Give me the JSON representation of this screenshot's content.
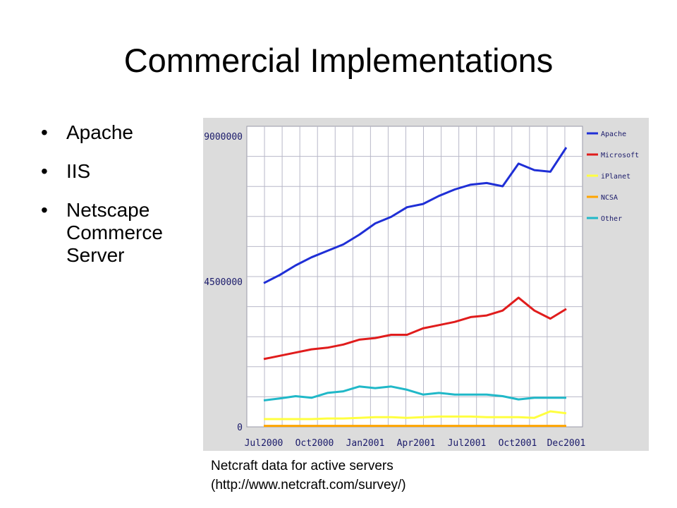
{
  "slide": {
    "title": "Commercial Implementations",
    "bullets": [
      "Apache",
      "IIS",
      "Netscape Commerce Server"
    ]
  },
  "caption": {
    "line1": "Netcraft data for active servers",
    "line2": "(http://www.netcraft.com/survey/)"
  },
  "chart_data": {
    "type": "line",
    "title": "",
    "xlabel": "",
    "ylabel": "",
    "x_tick_labels": [
      "Jul2000",
      "Oct2000",
      "Jan2001",
      "Apr2001",
      "Jul2001",
      "Oct2001",
      "Dec2001"
    ],
    "y_tick_labels": [
      "9000000",
      "4500000",
      "0"
    ],
    "ylim": [
      0,
      9000000
    ],
    "grid": true,
    "legend_position": "top-right",
    "series": [
      {
        "name": "Apache",
        "color": "#1f2fd6",
        "values": [
          4450000,
          4700000,
          5000000,
          5250000,
          5450000,
          5650000,
          5950000,
          6300000,
          6500000,
          6800000,
          6900000,
          7150000,
          7350000,
          7500000,
          7550000,
          7450000,
          8150000,
          7950000,
          7900000,
          8650000
        ]
      },
      {
        "name": "Microsoft",
        "color": "#e01c1c",
        "values": [
          2100000,
          2200000,
          2300000,
          2400000,
          2450000,
          2550000,
          2700000,
          2750000,
          2850000,
          2850000,
          3050000,
          3150000,
          3250000,
          3400000,
          3450000,
          3600000,
          4000000,
          3600000,
          3350000,
          3650000
        ]
      },
      {
        "name": "iPlanet",
        "color": "#ffff40",
        "values": [
          240000,
          240000,
          240000,
          240000,
          260000,
          260000,
          280000,
          300000,
          300000,
          280000,
          300000,
          320000,
          320000,
          320000,
          300000,
          300000,
          300000,
          280000,
          480000,
          420000
        ]
      },
      {
        "name": "NCSA",
        "color": "#ffa500",
        "values": [
          30000,
          30000,
          30000,
          30000,
          30000,
          30000,
          30000,
          30000,
          30000,
          30000,
          30000,
          30000,
          30000,
          30000,
          30000,
          30000,
          30000,
          30000,
          30000,
          30000
        ]
      },
      {
        "name": "Other",
        "color": "#20b8c8",
        "values": [
          820000,
          880000,
          950000,
          900000,
          1050000,
          1100000,
          1250000,
          1200000,
          1250000,
          1150000,
          1000000,
          1050000,
          1000000,
          1000000,
          1000000,
          950000,
          850000,
          900000,
          900000,
          900000
        ]
      }
    ]
  }
}
